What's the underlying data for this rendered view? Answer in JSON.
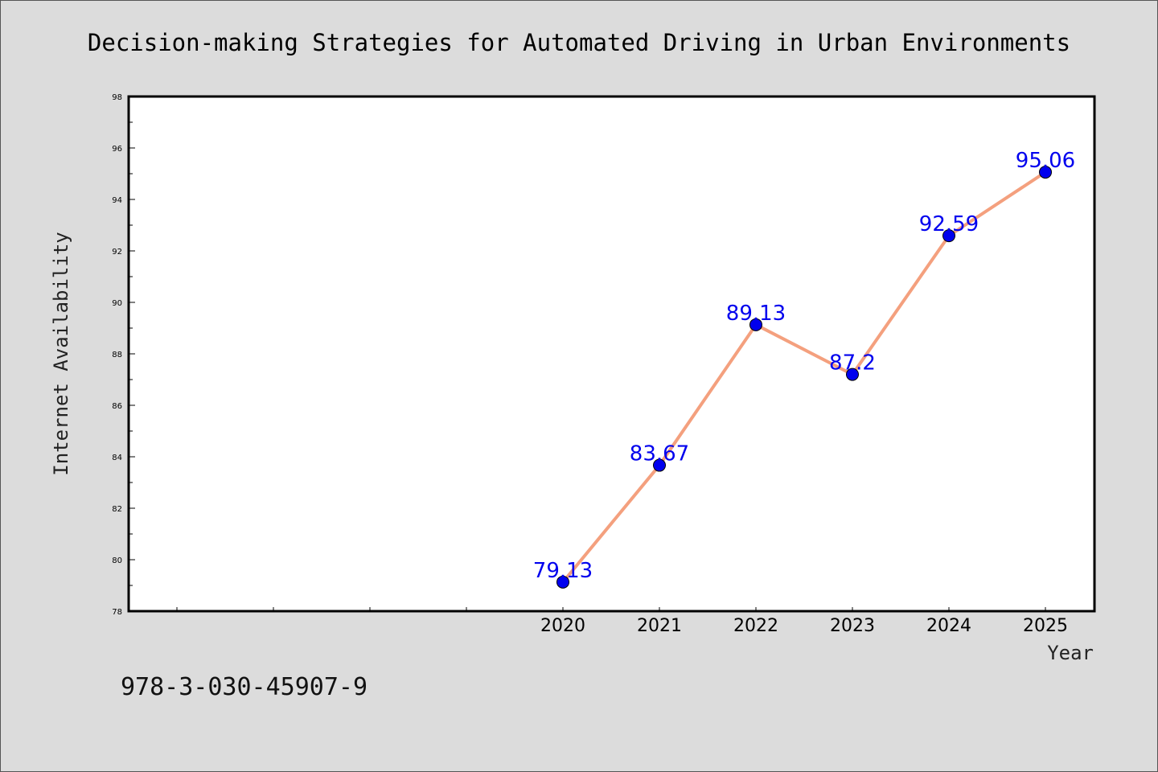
{
  "chart_data": {
    "type": "line",
    "title": "Decision-making Strategies for Automated Driving in Urban Environments",
    "xlabel": "Year",
    "ylabel": "Internet Availability",
    "x": [
      "2020",
      "2021",
      "2022",
      "2023",
      "2024",
      "2025"
    ],
    "series": [
      {
        "values": [
          79.13,
          83.67,
          89.13,
          87.2,
          92.59,
          95.06
        ]
      }
    ],
    "data_labels": [
      "79.13",
      "83.67",
      "89.13",
      "87.2",
      "92.59",
      "95.06"
    ],
    "ylim": [
      78,
      98
    ],
    "yticks": [
      78,
      80,
      82,
      84,
      86,
      88,
      90,
      92,
      94,
      96,
      98
    ],
    "ytick_labels": [
      "78",
      "80",
      "82",
      "84",
      "86",
      "88",
      "90",
      "92",
      "94",
      "96",
      "98"
    ],
    "x_slots_before_first": 4,
    "grid": false,
    "colors": {
      "line": "#f4a07e",
      "marker": "#0000ee",
      "label": "#0000ee",
      "background": "#dcdcdc",
      "plot_bg": "#ffffff"
    }
  },
  "footer": {
    "isbn": "978-3-030-45907-9"
  }
}
